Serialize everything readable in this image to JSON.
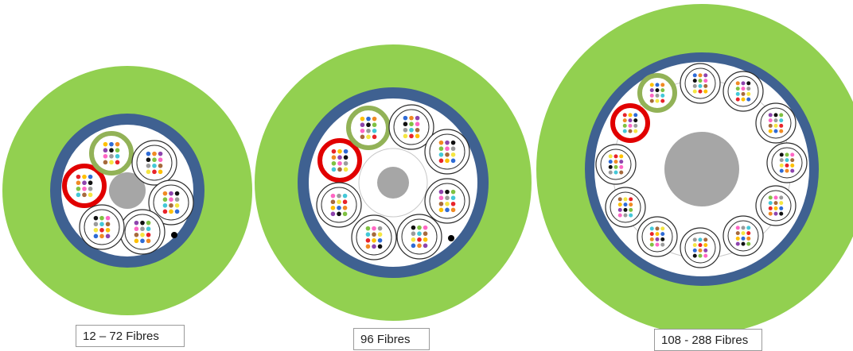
{
  "colors": {
    "jacket": "#92d050",
    "armour": "#3f6191",
    "core_fill": "#ffffff",
    "strength_member": "#a6a6a6",
    "highlight_red": "#e10000",
    "highlight_green": "#92b257",
    "tube_ring": "#2b2b2b",
    "fibre_colors": [
      "#e8232a",
      "#ffc000",
      "#2e6bd6",
      "#f08a24",
      "#8e44ad",
      "#111111",
      "#7fc142",
      "#ff66c4",
      "#9b9b9b",
      "#44c8d8",
      "#a66a3c",
      "#f5e642"
    ]
  },
  "cables": [
    {
      "label": "12 – 72 Fibres",
      "tube_count": 6
    },
    {
      "label": "96 Fibres",
      "tube_count": 8
    },
    {
      "label": "108 - 288 Fibres",
      "tube_count": 12
    }
  ]
}
